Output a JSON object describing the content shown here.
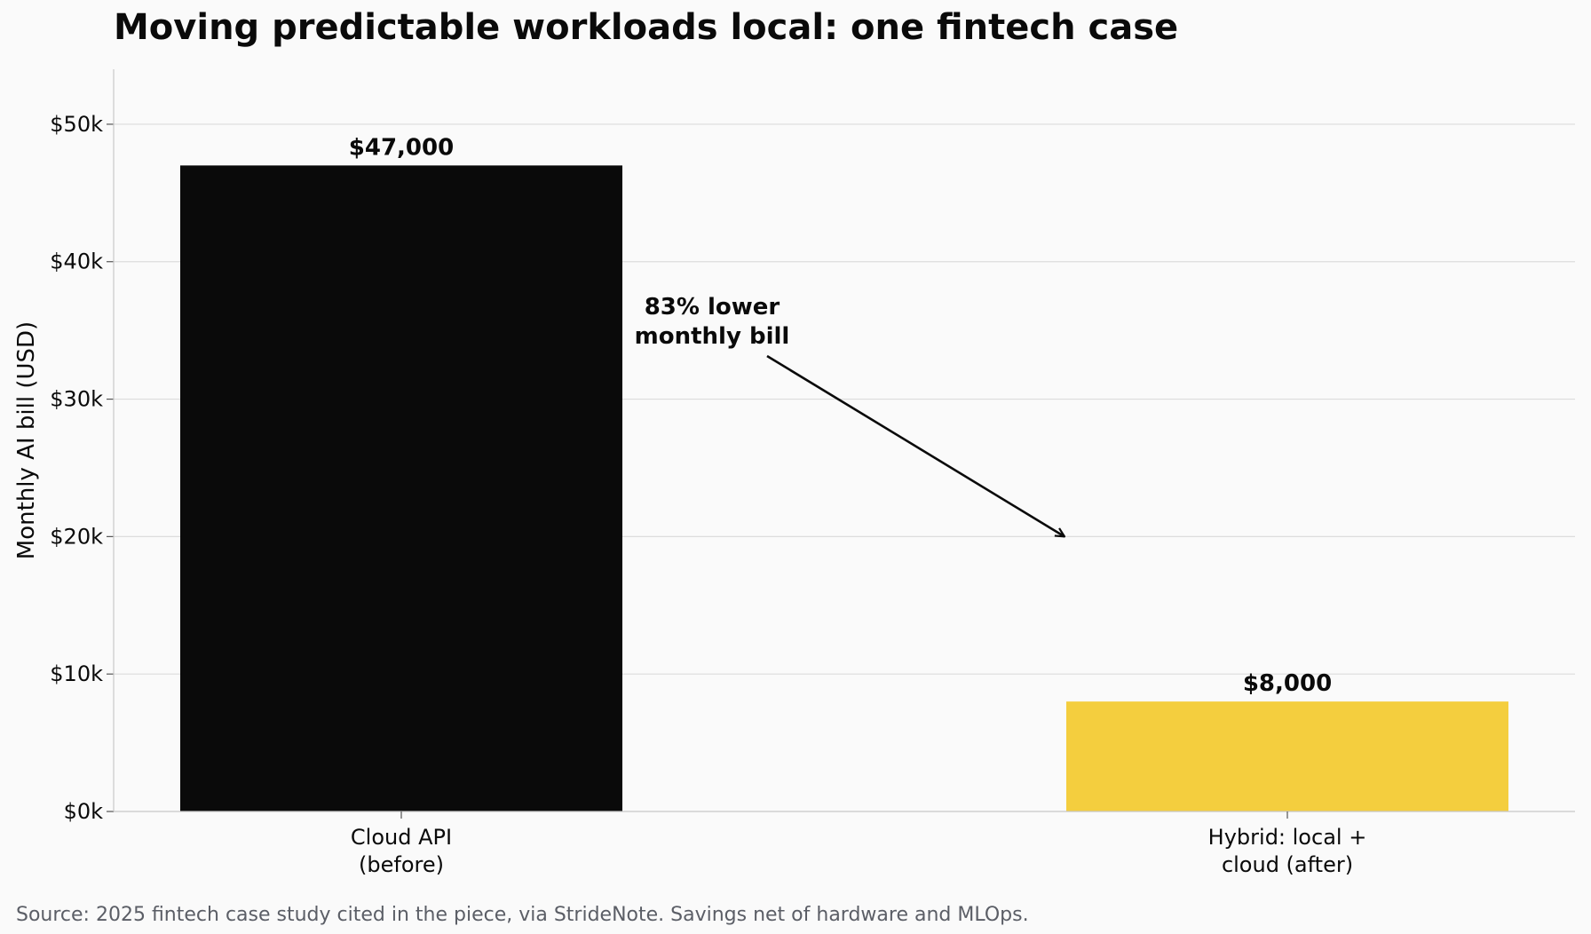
{
  "chart_data": {
    "type": "bar",
    "title": "Moving predictable workloads local: one fintech case",
    "ylabel": "Monthly AI bill (USD)",
    "xlabel": "",
    "categories": [
      [
        "Cloud API",
        "(before)"
      ],
      [
        "Hybrid: local +",
        "cloud (after)"
      ]
    ],
    "values": [
      47000,
      8000
    ],
    "value_labels": [
      "$47,000",
      "$8,000"
    ],
    "bar_colors": [
      "#0a0a0a",
      "#f4ce3e"
    ],
    "ylim": [
      0,
      54000
    ],
    "yticks": [
      0,
      10000,
      20000,
      30000,
      40000,
      50000
    ],
    "ytick_labels": [
      "$0k",
      "$10k",
      "$20k",
      "$30k",
      "$40k",
      "$50k"
    ],
    "grid": "horizontal",
    "annotation": {
      "lines": [
        "83% lower",
        "monthly bill"
      ],
      "arrow_to": {
        "category_index": 1,
        "value": 20000
      }
    }
  },
  "source": "Source: 2025 fintech case study cited in the piece, via StrideNote. Savings net of hardware and MLOps."
}
